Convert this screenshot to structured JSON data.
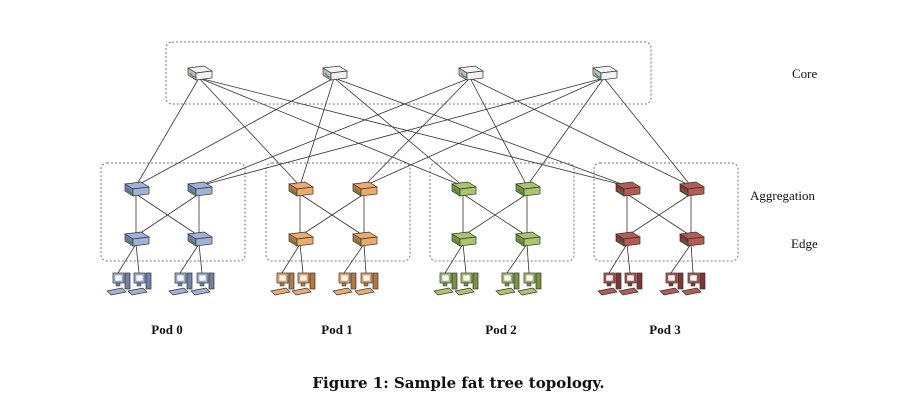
{
  "layers": {
    "core": "Core",
    "aggregation": "Aggregation",
    "edge": "Edge"
  },
  "pods": [
    {
      "label": "Pod 0",
      "color": "#9fb3d9",
      "dark": "#6f83a9"
    },
    {
      "label": "Pod 1",
      "color": "#eeaa6a",
      "dark": "#b8773c"
    },
    {
      "label": "Pod 2",
      "color": "#a9c66c",
      "dark": "#789440"
    },
    {
      "label": "Pod 3",
      "color": "#b65a54",
      "dark": "#823630"
    }
  ],
  "core_color": "#f2f2f2",
  "caption": "Figure 1: Sample fat tree topology."
}
